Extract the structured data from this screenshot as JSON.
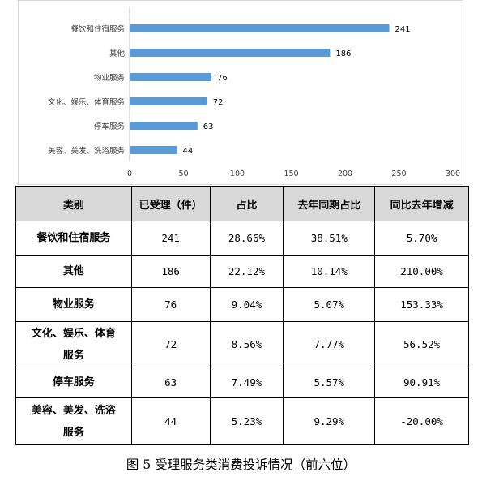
{
  "chart_data": {
    "type": "bar",
    "orientation": "horizontal",
    "categories": [
      "餐饮和住宿服务",
      "其他",
      "物业服务",
      "文化、娱乐、体育服务",
      "停车服务",
      "美容、美发、洗浴服务"
    ],
    "values": [
      241,
      186,
      76,
      72,
      63,
      44
    ],
    "xlim": [
      0,
      300
    ],
    "xticks": [
      0,
      50,
      100,
      150,
      200,
      250,
      300
    ],
    "bar_color": "#5b9bd5",
    "grid": false,
    "title": "",
    "xlabel": "",
    "ylabel": ""
  },
  "table": {
    "headers": [
      "类别",
      "已受理（件）",
      "占比",
      "去年同期占比",
      "同比去年增减"
    ],
    "rows": [
      {
        "category": "餐饮和住宿服务",
        "count": "241",
        "share": "28.66%",
        "last_year_share": "38.51%",
        "yoy_change": "5.70%"
      },
      {
        "category": "其他",
        "count": "186",
        "share": "22.12%",
        "last_year_share": "10.14%",
        "yoy_change": "210.00%"
      },
      {
        "category": "物业服务",
        "count": "76",
        "share": "9.04%",
        "last_year_share": "5.07%",
        "yoy_change": "153.33%"
      },
      {
        "category": "文化、娱乐、体育服务",
        "count": "72",
        "share": "8.56%",
        "last_year_share": "7.77%",
        "yoy_change": "56.52%"
      },
      {
        "category": "停车服务",
        "count": "63",
        "share": "7.49%",
        "last_year_share": "5.57%",
        "yoy_change": "90.91%"
      },
      {
        "category": "美容、美发、洗浴服务",
        "count": "44",
        "share": "5.23%",
        "last_year_share": "9.29%",
        "yoy_change": "-20.00%"
      }
    ]
  },
  "caption": "图 5 受理服务类消费投诉情况（前六位）"
}
